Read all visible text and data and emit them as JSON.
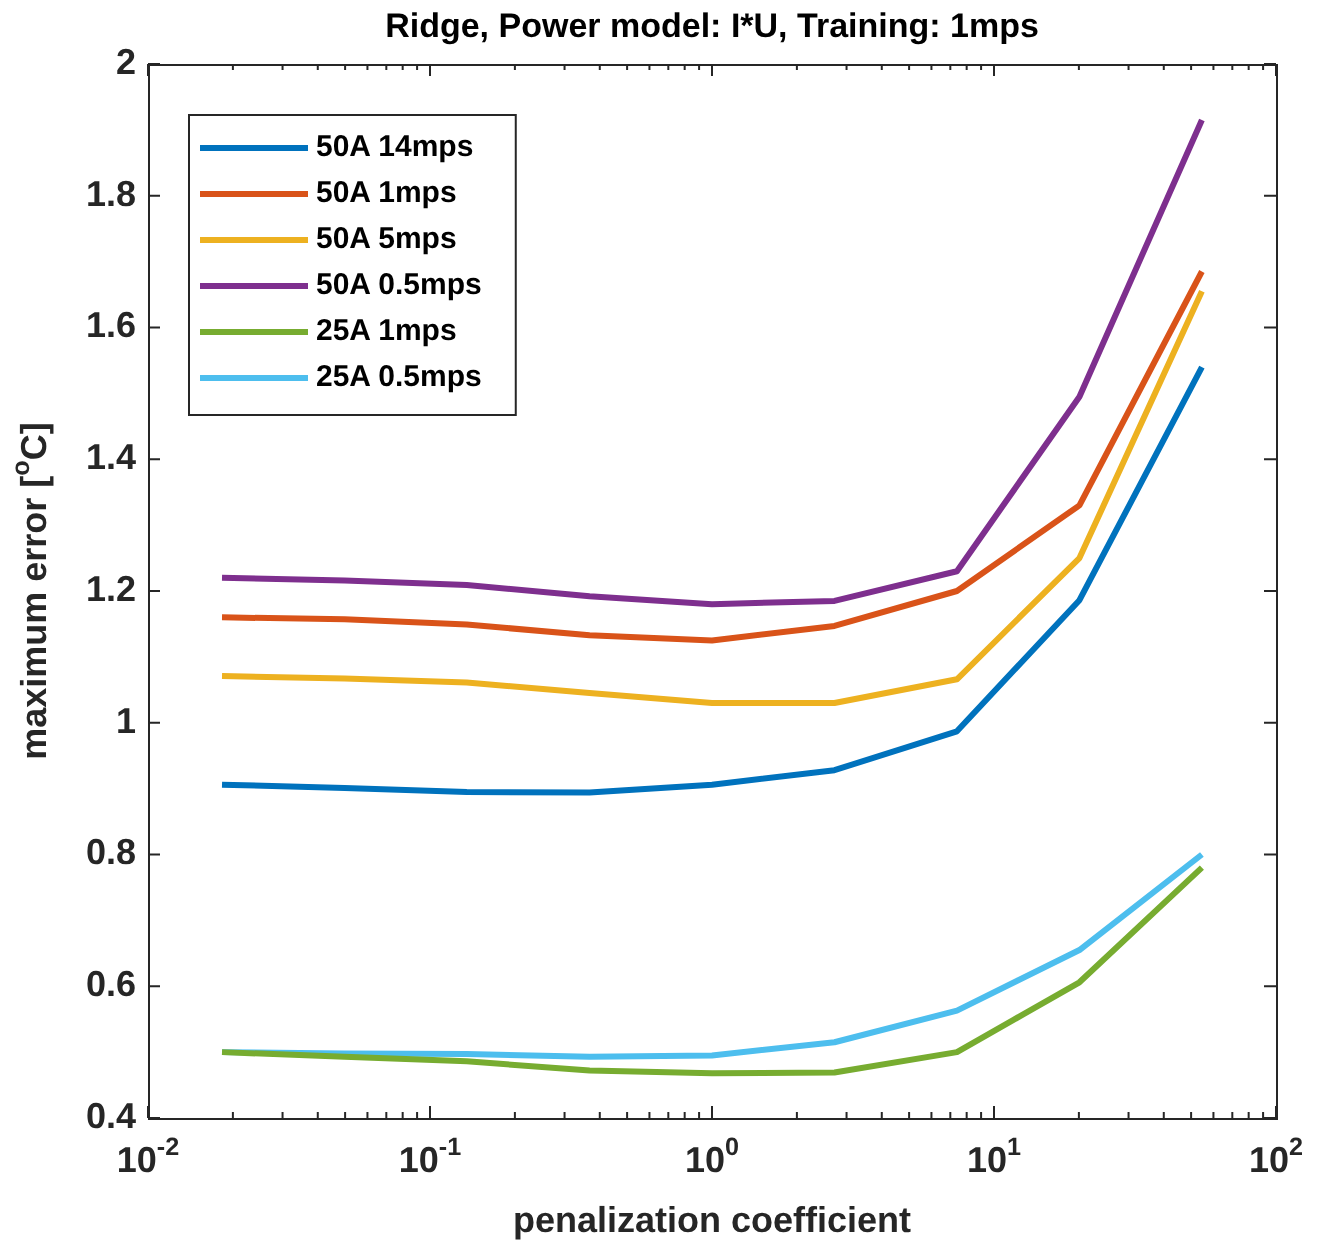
{
  "chart_data": {
    "type": "line",
    "title": "Ridge, Power model: I*U, Training: 1mps",
    "xlabel": "penalization coefficient",
    "ylabel": "maximum error [$^{o}$C]",
    "x": [
      0.0183,
      0.0498,
      0.135,
      0.368,
      1,
      2.718,
      7.389,
      20.09,
      54.6
    ],
    "series": [
      {
        "name": "50A 14mps",
        "color": "#0072bd",
        "values": [
          0.906,
          0.901,
          0.895,
          0.894,
          0.906,
          0.928,
          0.987,
          1.186,
          1.54
        ]
      },
      {
        "name": "50A 1mps",
        "color": "#d95319",
        "values": [
          1.16,
          1.157,
          1.149,
          1.133,
          1.125,
          1.147,
          1.2,
          1.33,
          1.685
        ]
      },
      {
        "name": "50A 5mps",
        "color": "#edb120",
        "values": [
          1.071,
          1.067,
          1.061,
          1.045,
          1.03,
          1.03,
          1.066,
          1.25,
          1.655
        ]
      },
      {
        "name": "50A 0.5mps",
        "color": "#7e2f8e",
        "values": [
          1.22,
          1.216,
          1.209,
          1.192,
          1.18,
          1.185,
          1.23,
          1.495,
          1.915
        ]
      },
      {
        "name": "25A 1mps",
        "color": "#77ac30",
        "values": [
          0.5,
          0.493,
          0.486,
          0.472,
          0.468,
          0.469,
          0.5,
          0.606,
          0.78
        ]
      },
      {
        "name": "25A 0.5mps",
        "color": "#4dbeee",
        "values": [
          0.5,
          0.498,
          0.497,
          0.493,
          0.495,
          0.515,
          0.563,
          0.655,
          0.8
        ]
      }
    ],
    "log": "x",
    "xlim": [
      0.01,
      100
    ],
    "xticks": [
      {
        "value": 0.01,
        "label": "10$^{-2}$"
      },
      {
        "value": 0.02,
        "label": null
      },
      {
        "value": 0.03,
        "label": null
      },
      {
        "value": 0.04,
        "label": null
      },
      {
        "value": 0.05,
        "label": null
      },
      {
        "value": 0.06,
        "label": null
      },
      {
        "value": 0.07,
        "label": null
      },
      {
        "value": 0.08,
        "label": null
      },
      {
        "value": 0.09,
        "label": null
      },
      {
        "value": 0.1,
        "label": "10$^{-1}$"
      },
      {
        "value": 0.2,
        "label": null
      },
      {
        "value": 0.3,
        "label": null
      },
      {
        "value": 0.4,
        "label": null
      },
      {
        "value": 0.5,
        "label": null
      },
      {
        "value": 0.6,
        "label": null
      },
      {
        "value": 0.7,
        "label": null
      },
      {
        "value": 0.8,
        "label": null
      },
      {
        "value": 0.9,
        "label": null
      },
      {
        "value": 1,
        "label": "10$^{0}$"
      },
      {
        "value": 2,
        "label": null
      },
      {
        "value": 3,
        "label": null
      },
      {
        "value": 4,
        "label": null
      },
      {
        "value": 5,
        "label": null
      },
      {
        "value": 6,
        "label": null
      },
      {
        "value": 7,
        "label": null
      },
      {
        "value": 8,
        "label": null
      },
      {
        "value": 9,
        "label": null
      },
      {
        "value": 10,
        "label": "10$^{1}$"
      },
      {
        "value": 20,
        "label": null
      },
      {
        "value": 30,
        "label": null
      },
      {
        "value": 40,
        "label": null
      },
      {
        "value": 50,
        "label": null
      },
      {
        "value": 60,
        "label": null
      },
      {
        "value": 70,
        "label": null
      },
      {
        "value": 80,
        "label": null
      },
      {
        "value": 90,
        "label": null
      },
      {
        "value": 100,
        "label": "10$^{2}$"
      }
    ],
    "ylim": [
      0.4,
      2
    ],
    "yticks": [
      0.4,
      0.6,
      0.8,
      1,
      1.2,
      1.4,
      1.6,
      1.8,
      2
    ],
    "grid": false,
    "legend": "top left",
    "marker": "none",
    "line_style": "solid"
  }
}
